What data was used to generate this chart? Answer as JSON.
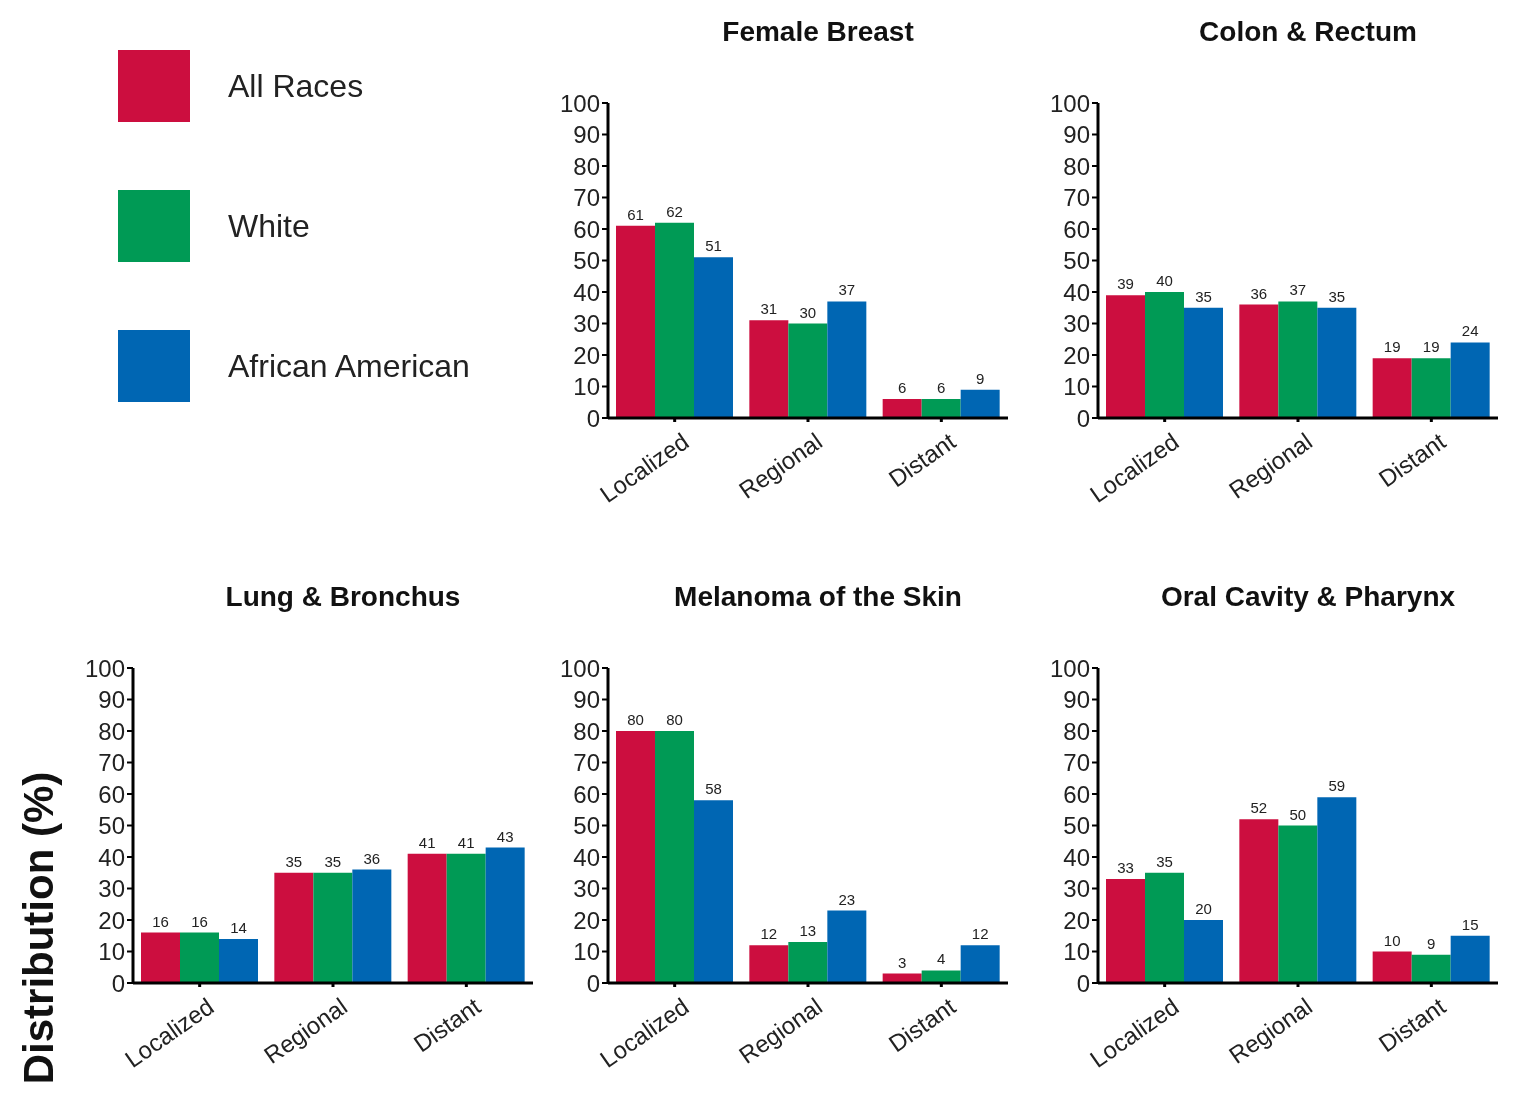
{
  "chart_data": [
    {
      "type": "bar",
      "title": "Female Breast",
      "categories": [
        "Localized",
        "Regional",
        "Distant"
      ],
      "legend": "left",
      "series": [
        {
          "name": "All Races",
          "color": "#cc0e3f",
          "values": [
            61,
            31,
            6
          ]
        },
        {
          "name": "White",
          "color": "#009a55",
          "values": [
            62,
            30,
            6
          ]
        },
        {
          "name": "African American",
          "color": "#0066b3",
          "values": [
            51,
            37,
            9
          ]
        }
      ],
      "ylim": [
        0,
        100
      ],
      "yticks": [
        0,
        10,
        20,
        30,
        40,
        50,
        60,
        70,
        80,
        90,
        100
      ],
      "data_labels": true
    },
    {
      "type": "bar",
      "title": "Colon & Rectum",
      "categories": [
        "Localized",
        "Regional",
        "Distant"
      ],
      "series": [
        {
          "color": "#cc0e3f",
          "values": [
            39,
            36,
            19
          ]
        },
        {
          "color": "#009a55",
          "values": [
            40,
            37,
            19
          ]
        },
        {
          "color": "#0066b3",
          "values": [
            35,
            35,
            24
          ]
        }
      ],
      "ylim": [
        0,
        100
      ],
      "yticks": [
        0,
        10,
        20,
        30,
        40,
        50,
        60,
        70,
        80,
        90,
        100
      ],
      "data_labels": true
    },
    {
      "type": "bar",
      "title": "Lung & Bronchus",
      "ylabel": "Distribution (%)",
      "categories": [
        "Localized",
        "Regional",
        "Distant"
      ],
      "series": [
        {
          "color": "#cc0e3f",
          "values": [
            16,
            35,
            41
          ]
        },
        {
          "color": "#009a55",
          "values": [
            16,
            35,
            41
          ]
        },
        {
          "color": "#0066b3",
          "values": [
            14,
            36,
            43
          ]
        }
      ],
      "ylim": [
        0,
        100
      ],
      "yticks": [
        0,
        10,
        20,
        30,
        40,
        50,
        60,
        70,
        80,
        90,
        100
      ],
      "data_labels": true
    },
    {
      "type": "bar",
      "title": "Melanoma of the Skin",
      "categories": [
        "Localized",
        "Regional",
        "Distant"
      ],
      "series": [
        {
          "color": "#cc0e3f",
          "values": [
            80,
            12,
            3
          ]
        },
        {
          "color": "#009a55",
          "values": [
            80,
            13,
            4
          ]
        },
        {
          "color": "#0066b3",
          "values": [
            58,
            23,
            12
          ]
        }
      ],
      "ylim": [
        0,
        100
      ],
      "yticks": [
        0,
        10,
        20,
        30,
        40,
        50,
        60,
        70,
        80,
        90,
        100
      ],
      "data_labels": true
    },
    {
      "type": "bar",
      "title": "Oral Cavity & Pharynx",
      "categories": [
        "Localized",
        "Regional",
        "Distant"
      ],
      "series": [
        {
          "color": "#cc0e3f",
          "values": [
            33,
            52,
            10
          ]
        },
        {
          "color": "#009a55",
          "values": [
            35,
            50,
            9
          ]
        },
        {
          "color": "#0066b3",
          "values": [
            20,
            59,
            15
          ]
        }
      ],
      "ylim": [
        0,
        100
      ],
      "yticks": [
        0,
        10,
        20,
        30,
        40,
        50,
        60,
        70,
        80,
        90,
        100
      ],
      "data_labels": true
    }
  ]
}
